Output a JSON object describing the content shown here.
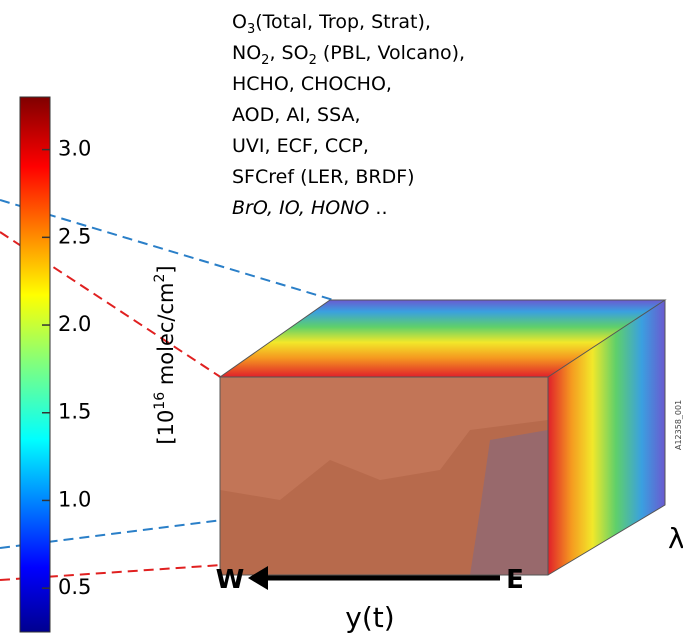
{
  "colorbar": {
    "label": [
      "[10",
      "16",
      " molec/cm",
      "2",
      "]"
    ],
    "lim": [
      0.25,
      3.3
    ],
    "ticks": [
      {
        "value": 0.5,
        "label": "0.5"
      },
      {
        "value": 1.0,
        "label": "1.0"
      },
      {
        "value": 1.5,
        "label": "1.5"
      },
      {
        "value": 2.0,
        "label": "2.0"
      },
      {
        "value": 2.5,
        "label": "2.5"
      },
      {
        "value": 3.0,
        "label": "3.0"
      }
    ]
  },
  "products": [
    [
      "O",
      {
        "sub": "3"
      },
      "(Total, Trop, Strat),"
    ],
    [
      "NO",
      {
        "sub": "2"
      },
      ", SO",
      {
        "sub": "2"
      },
      " (PBL, Volcano),"
    ],
    [
      "HCHO, CHOCHO,"
    ],
    [
      "AOD, AI, SSA,"
    ],
    [
      "UVI, ECF, CCP,"
    ],
    [
      "SFCref (LER, BRDF)"
    ],
    [
      {
        "italic": "BrO, IO, HONO"
      },
      " .."
    ]
  ],
  "cube": {
    "west": "W",
    "east": "E",
    "axis": "y(t)",
    "wavelength": "λ",
    "figure_id": "A12358_001"
  }
}
